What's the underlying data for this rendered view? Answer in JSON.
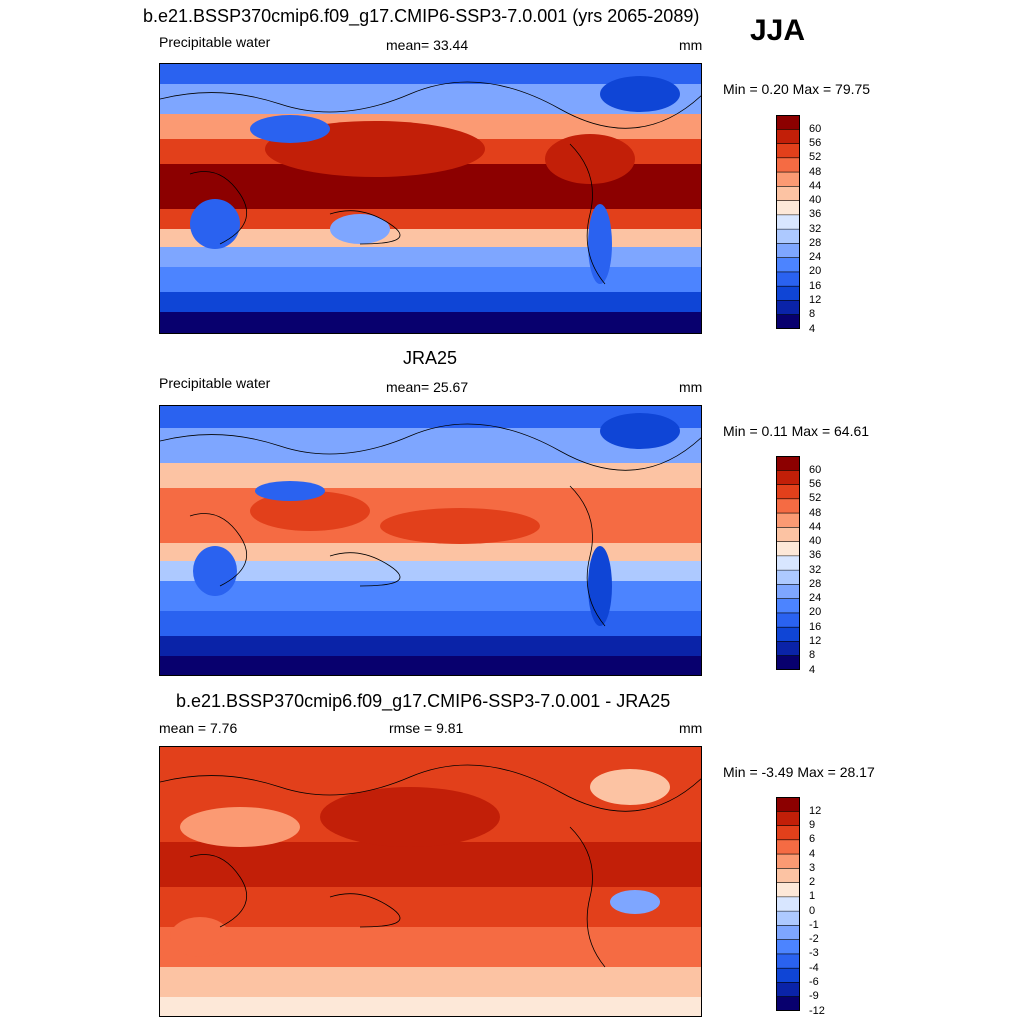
{
  "season": "JJA",
  "colors": {
    "scale": [
      "#08006e",
      "#0a23a8",
      "#0f45d6",
      "#2a62f0",
      "#4c84ff",
      "#7ea6ff",
      "#adc9ff",
      "#d8e6ff",
      "#fde8d8",
      "#fcc3a3",
      "#fb9a73",
      "#f56b43",
      "#e2401b",
      "#c21f08",
      "#8c0000"
    ]
  },
  "panels": [
    {
      "title": "b.e21.BSSP370cmip6.f09_g17.CMIP6-SSP3-7.0.001 (yrs 2065-2089)",
      "left_label": "Precipitable water",
      "center_label": "mean=  33.44",
      "units": "mm",
      "minmax": "Min =   0.20 Max =  79.75",
      "colorbar_labels": [
        "60",
        "56",
        "52",
        "48",
        "44",
        "40",
        "36",
        "32",
        "28",
        "24",
        "20",
        "16",
        "12",
        "8",
        "4"
      ]
    },
    {
      "title": "JRA25",
      "left_label": "Precipitable water",
      "center_label": "mean=  25.67",
      "units": "mm",
      "minmax": "Min =   0.11 Max =  64.61",
      "colorbar_labels": [
        "60",
        "56",
        "52",
        "48",
        "44",
        "40",
        "36",
        "32",
        "28",
        "24",
        "20",
        "16",
        "12",
        "8",
        "4"
      ]
    },
    {
      "title": "b.e21.BSSP370cmip6.f09_g17.CMIP6-SSP3-7.0.001 - JRA25",
      "left_label": "mean =   7.76",
      "center_label": "rmse =   9.81",
      "units": "mm",
      "minmax": "Min =  -3.49 Max =  28.17",
      "colorbar_labels": [
        "12",
        "9",
        "6",
        "4",
        "3",
        "2",
        "1",
        "0",
        "-1",
        "-2",
        "-3",
        "-4",
        "-6",
        "-9",
        "-12"
      ]
    }
  ]
}
